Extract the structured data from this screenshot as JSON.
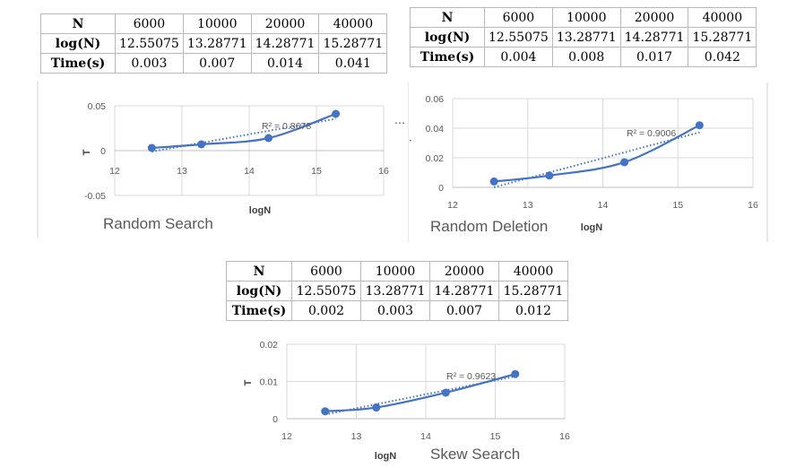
{
  "charts": [
    {
      "id": "random-search",
      "table": {
        "rows": [
          {
            "head": "N",
            "cells": [
              "6000",
              "10000",
              "20000",
              "40000"
            ]
          },
          {
            "head": "log(N)",
            "cells": [
              "12.55075",
              "13.28771",
              "14.28771",
              "15.28771"
            ]
          },
          {
            "head": "Time(s)",
            "cells": [
              "0.003",
              "0.007",
              "0.014",
              "0.041"
            ]
          }
        ]
      },
      "chart_data": {
        "type": "scatter",
        "title": "Random Search",
        "xlabel": "logN",
        "ylabel": "T",
        "xlim": [
          12,
          16
        ],
        "ylim": [
          -0.05,
          0.05
        ],
        "x_ticks": [
          "12",
          "13",
          "14",
          "15",
          "16"
        ],
        "y_ticks": [
          "-0.05",
          "0",
          "0.05"
        ],
        "x": [
          12.55075,
          13.28771,
          14.28771,
          15.28771
        ],
        "y": [
          0.003,
          0.007,
          0.014,
          0.041
        ],
        "r2_label": "R² = 0.8678",
        "trendline": "linear-dotted",
        "grid": "vertical",
        "color": "#4472c4"
      }
    },
    {
      "id": "random-deletion",
      "table": {
        "rows": [
          {
            "head": "N",
            "cells": [
              "6000",
              "10000",
              "20000",
              "40000"
            ]
          },
          {
            "head": "log(N)",
            "cells": [
              "12.55075",
              "13.28771",
              "14.28771",
              "15.28771"
            ]
          },
          {
            "head": "Time(s)",
            "cells": [
              "0.004",
              "0.008",
              "0.017",
              "0.042"
            ]
          }
        ]
      },
      "chart_data": {
        "type": "scatter",
        "title": "Random Deletion",
        "xlabel": "logN",
        "ylabel": "",
        "xlim": [
          12,
          16
        ],
        "ylim": [
          0,
          0.06
        ],
        "x_ticks": [
          "12",
          "13",
          "14",
          "15",
          "16"
        ],
        "y_ticks": [
          "0",
          "0.02",
          "0.04",
          "0.06"
        ],
        "x": [
          12.55075,
          13.28771,
          14.28771,
          15.28771
        ],
        "y": [
          0.004,
          0.008,
          0.017,
          0.042
        ],
        "r2_label": "R² = 0.9006",
        "trendline": "linear-dotted",
        "grid": "both",
        "color": "#4472c4"
      }
    },
    {
      "id": "skew-search",
      "table": {
        "rows": [
          {
            "head": "N",
            "cells": [
              "6000",
              "10000",
              "20000",
              "40000"
            ]
          },
          {
            "head": "log(N)",
            "cells": [
              "12.55075",
              "13.28771",
              "14.28771",
              "15.28771"
            ]
          },
          {
            "head": "Time(s)",
            "cells": [
              "0.002",
              "0.003",
              "0.007",
              "0.012"
            ]
          }
        ]
      },
      "chart_data": {
        "type": "scatter",
        "title": "Skew Search",
        "xlabel": "logN",
        "ylabel": "T",
        "xlim": [
          12,
          16
        ],
        "ylim": [
          0,
          0.02
        ],
        "x_ticks": [
          "12",
          "13",
          "14",
          "15",
          "16"
        ],
        "y_ticks": [
          "0",
          "0.01",
          "0.02"
        ],
        "x": [
          12.55075,
          13.28771,
          14.28771,
          15.28771
        ],
        "y": [
          0.002,
          0.003,
          0.007,
          0.012
        ],
        "r2_label": "R² = 0.9623",
        "trendline": "linear-dotted",
        "grid": "both",
        "color": "#4472c4"
      }
    }
  ],
  "stray_marks": {
    "ellipsis": "⋯",
    "dot": "·"
  }
}
